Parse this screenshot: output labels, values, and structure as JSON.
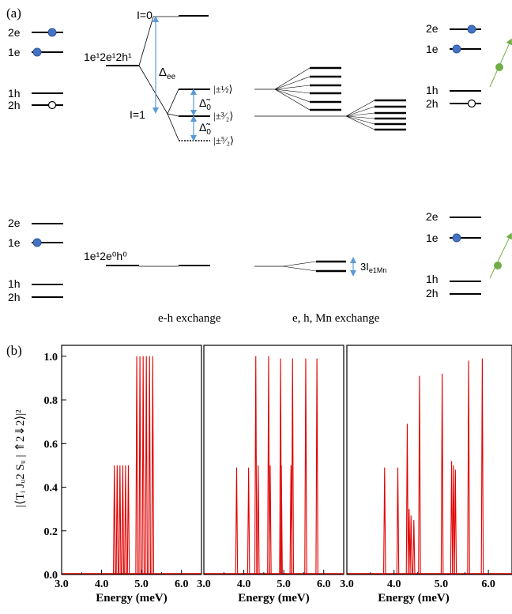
{
  "panel_a": {
    "label": "(a)",
    "top_left_levels": [
      "2e",
      "1e",
      "1h",
      "2h"
    ],
    "top_right_levels": [
      "2e",
      "1e",
      "1h",
      "2h"
    ],
    "bottom_left_levels": [
      "2e",
      "1e",
      "1h",
      "2h"
    ],
    "bottom_right_levels": [
      "2e",
      "1e",
      "1h",
      "2h"
    ],
    "config_top": "1e¹2e¹2h¹",
    "config_bottom": "1e¹2e⁰h⁰",
    "i0_label": "I=0",
    "i1_label": "I=1",
    "delta_ee_label": "Δ",
    "delta_ee_sub": "ee",
    "delta0_label": "Δ̃",
    "delta0_sub": "0",
    "ket_1_2": "|±½⟩",
    "ket_3_2": "|±³⁄₂⟩",
    "ket_5_2": "|±⁵⁄₂⟩",
    "exchange_split_label": "3I",
    "exchange_split_sub": "e1Mn",
    "caption_eh": "e-h exchange",
    "caption_ehmn": "e, h, Mn exchange",
    "colors": {
      "electron_fill": "#4472c4",
      "arrow_blue": "#5b9bd5",
      "mn_green": "#70ad47",
      "line": "#000000"
    }
  },
  "panel_b": {
    "label": "(b)",
    "ylabel": "|⟨Tᵢ Jᵤ2 Sᵤ | ⇑2⇓2⟩|²",
    "xlabel": "Energy (meV)",
    "line_color": "#e00000"
  },
  "chart_data": [
    {
      "type": "line",
      "xlabel": "Energy (meV)",
      "ylabel": "|⟨Tᵢ Jᵤ2 Sᵤ | ⇑2⇓2⟩|²",
      "xlim": [
        3.0,
        6.5
      ],
      "ylim": [
        0.0,
        1.05
      ],
      "xticks": [
        "3.0",
        "4.0",
        "5.0",
        "6.0"
      ],
      "yticks": [
        "0.0",
        "0.2",
        "0.4",
        "0.6",
        "0.8",
        "1.0"
      ],
      "peaks": [
        {
          "x": 4.32,
          "y": 0.5
        },
        {
          "x": 4.39,
          "y": 0.5
        },
        {
          "x": 4.46,
          "y": 0.5
        },
        {
          "x": 4.53,
          "y": 0.5
        },
        {
          "x": 4.6,
          "y": 0.5
        },
        {
          "x": 4.67,
          "y": 0.5
        },
        {
          "x": 4.88,
          "y": 1.0
        },
        {
          "x": 4.96,
          "y": 1.0
        },
        {
          "x": 5.04,
          "y": 1.0
        },
        {
          "x": 5.12,
          "y": 1.0
        },
        {
          "x": 5.2,
          "y": 1.0
        },
        {
          "x": 5.28,
          "y": 1.0
        }
      ]
    },
    {
      "type": "line",
      "xlabel": "Energy (meV)",
      "xlim": [
        3.0,
        6.5
      ],
      "ylim": [
        0.0,
        1.05
      ],
      "xticks": [
        "3.0",
        "4.0",
        "5.0",
        "6.0"
      ],
      "peaks": [
        {
          "x": 3.82,
          "y": 0.49
        },
        {
          "x": 4.12,
          "y": 0.49
        },
        {
          "x": 4.3,
          "y": 1.0
        },
        {
          "x": 4.36,
          "y": 0.5
        },
        {
          "x": 4.62,
          "y": 1.0
        },
        {
          "x": 4.66,
          "y": 0.5
        },
        {
          "x": 4.92,
          "y": 0.99
        },
        {
          "x": 4.94,
          "y": 0.5
        },
        {
          "x": 5.22,
          "y": 0.99
        },
        {
          "x": 5.18,
          "y": 0.5
        },
        {
          "x": 5.55,
          "y": 0.99
        },
        {
          "x": 5.83,
          "y": 0.99
        }
      ]
    },
    {
      "type": "line",
      "xlabel": "Energy (meV)",
      "xlim": [
        3.0,
        6.5
      ],
      "ylim": [
        0.0,
        1.05
      ],
      "xticks": [
        "3.0",
        "4.0",
        "5.0",
        "6.0"
      ],
      "peaks": [
        {
          "x": 3.8,
          "y": 0.49
        },
        {
          "x": 4.08,
          "y": 0.49
        },
        {
          "x": 4.28,
          "y": 0.69
        },
        {
          "x": 4.32,
          "y": 0.3
        },
        {
          "x": 4.36,
          "y": 0.27
        },
        {
          "x": 4.42,
          "y": 0.25
        },
        {
          "x": 4.54,
          "y": 0.91
        },
        {
          "x": 5.02,
          "y": 0.92
        },
        {
          "x": 5.22,
          "y": 0.52
        },
        {
          "x": 5.26,
          "y": 0.5
        },
        {
          "x": 5.3,
          "y": 0.48
        },
        {
          "x": 5.58,
          "y": 0.98
        },
        {
          "x": 5.87,
          "y": 0.99
        }
      ]
    }
  ]
}
